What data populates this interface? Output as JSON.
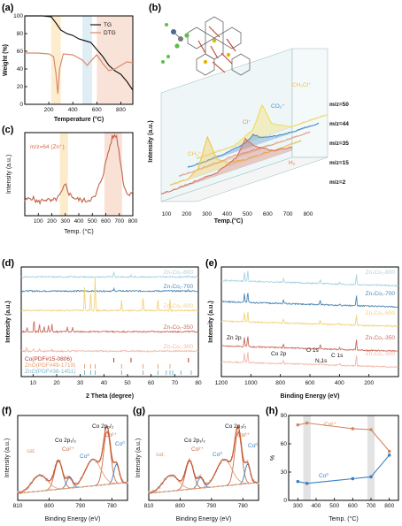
{
  "chart_data": [
    {
      "panel": "(a)",
      "type": "line",
      "xlabel": "Temperature (°C)",
      "ylabel": "Weight (%)",
      "xlim": [
        0,
        900
      ],
      "ylim": [
        0,
        100
      ],
      "xticks": [
        "200",
        "400",
        "600",
        "800"
      ],
      "yticks": [
        "0",
        "20",
        "40",
        "60",
        "80",
        "100"
      ],
      "legend": [
        "TG",
        "DTG"
      ],
      "legend_position": "top-right",
      "highlight_bands": [
        [
          220,
          300
        ],
        [
          480,
          560
        ],
        [
          600,
          900
        ]
      ],
      "series": [
        {
          "name": "TG",
          "color": "#1a1a1a",
          "x": [
            0,
            150,
            220,
            260,
            300,
            350,
            400,
            450,
            500,
            550,
            600,
            650,
            700,
            750,
            800,
            850,
            900
          ],
          "y": [
            100,
            100,
            99,
            92,
            84,
            80,
            78,
            74,
            72,
            70,
            62,
            54,
            44,
            38,
            34,
            26,
            16
          ]
        },
        {
          "name": "DTG",
          "color": "#d98a6a",
          "x": [
            0,
            100,
            200,
            240,
            260,
            275,
            290,
            320,
            400,
            480,
            520,
            550,
            600,
            650,
            700,
            750,
            800,
            850,
            900
          ],
          "y": [
            58,
            58,
            57,
            54,
            35,
            12,
            40,
            57,
            56,
            50,
            44,
            49,
            56,
            46,
            38,
            40,
            44,
            48,
            47
          ]
        }
      ]
    },
    {
      "panel": "(b)",
      "type": "line",
      "xlabel": "Temp.(°C)",
      "ylabel": "Intensity (a.u.)",
      "xticks": [
        "100",
        "200",
        "300",
        "400",
        "500",
        "600",
        "700",
        "800"
      ],
      "series_labels": [
        "m/z=50",
        "m/z=44",
        "m/z=35",
        "m/z=15",
        "m/z=2"
      ],
      "species_labels": [
        "CH₃Cl⁺",
        "CO₂⁺",
        "Cl⁺",
        "CH₃⁺",
        "H₂"
      ],
      "series": [
        {
          "name": "m/z=50",
          "color": "#f2dd5c",
          "x": [
            100,
            200,
            300,
            400,
            450,
            500,
            600,
            700,
            800
          ],
          "y": [
            0,
            0,
            0,
            0.3,
            1,
            0.3,
            0,
            0,
            0
          ]
        },
        {
          "name": "m/z=44",
          "color": "#4a8fc9",
          "x": [
            100,
            200,
            300,
            400,
            450,
            500,
            600,
            700,
            800
          ],
          "y": [
            0,
            0,
            0.1,
            0.4,
            1,
            0.4,
            0.1,
            0,
            0
          ]
        },
        {
          "name": "m/z=35",
          "color": "#e8a08a",
          "x": [
            100,
            200,
            300,
            400,
            500,
            600,
            700,
            800
          ],
          "y": [
            0,
            0,
            0.1,
            0.2,
            0.1,
            0.05,
            0,
            0
          ]
        },
        {
          "name": "m/z=15",
          "color": "#f0c64a",
          "x": [
            100,
            200,
            250,
            300,
            350,
            400,
            500,
            600,
            700,
            800
          ],
          "y": [
            0,
            0,
            0.2,
            1,
            0.3,
            0.1,
            0,
            0,
            0,
            0
          ]
        },
        {
          "name": "m/z=2",
          "color": "#d9735e",
          "x": [
            100,
            200,
            300,
            400,
            500,
            550,
            600,
            700,
            800
          ],
          "y": [
            0,
            0,
            0.05,
            0.1,
            0.4,
            1,
            0.6,
            0.2,
            0.1
          ]
        }
      ]
    },
    {
      "panel": "(c)",
      "type": "line",
      "annotation": "m/z=64 (Zn⁺)",
      "xlabel": "Temp. (°C)",
      "ylabel": "Intensity (a.u.)",
      "xlim": [
        0,
        800
      ],
      "xticks": [
        "100",
        "200",
        "300",
        "400",
        "500",
        "600",
        "700",
        "800"
      ],
      "highlight_bands": [
        [
          260,
          320
        ],
        [
          590,
          720
        ]
      ],
      "series": [
        {
          "name": "m/z=64",
          "color": "#c0634a",
          "x": [
            0,
            50,
            100,
            150,
            200,
            250,
            280,
            300,
            330,
            380,
            450,
            520,
            580,
            620,
            650,
            680,
            700,
            730,
            760,
            800
          ],
          "y": [
            0.18,
            0.22,
            0.16,
            0.2,
            0.17,
            0.22,
            0.3,
            0.38,
            0.26,
            0.2,
            0.18,
            0.22,
            0.5,
            0.78,
            0.95,
            0.96,
            0.75,
            0.4,
            0.25,
            0.3
          ]
        }
      ]
    },
    {
      "panel": "(d)",
      "type": "line",
      "xlabel": "2 Theta (degree)",
      "ylabel": "Intensity (a.u.)",
      "xlim": [
        5,
        80
      ],
      "xticks": [
        "10",
        "20",
        "30",
        "40",
        "50",
        "60",
        "70",
        "80"
      ],
      "references": [
        "Co(PDF#15-0806)",
        "ZnO(PDF#49-1719)",
        "ZnO(PDF#36-1451)"
      ],
      "series": [
        {
          "name": "Zn₇Co₁-800",
          "color": "#a9d3e2",
          "peaks": [
            [
              44.2,
              0.6
            ],
            [
              51.5,
              0.2
            ],
            [
              75.8,
              0.2
            ]
          ]
        },
        {
          "name": "Zn₇Co₁-700",
          "color": "#4a86b5",
          "peaks": [
            [
              44.2,
              0.3
            ],
            [
              75.8,
              0.15
            ]
          ]
        },
        {
          "name": "Zn₇Co₁-600",
          "color": "#f2d27a",
          "peaks": [
            [
              31.8,
              0.7
            ],
            [
              34.4,
              0.6
            ],
            [
              36.3,
              1.0
            ],
            [
              47.5,
              0.3
            ],
            [
              56.6,
              0.4
            ],
            [
              62.9,
              0.35
            ],
            [
              68.0,
              0.3
            ]
          ]
        },
        {
          "name": "Zn₇Co₁-350",
          "color": "#c96b5e",
          "peaks": [
            [
              7.5,
              0.3
            ],
            [
              10.4,
              0.8
            ],
            [
              12.7,
              0.5
            ],
            [
              14.7,
              0.3
            ],
            [
              16.5,
              0.4
            ],
            [
              18.0,
              0.5
            ],
            [
              24.5,
              0.3
            ],
            [
              26.7,
              0.3
            ]
          ]
        },
        {
          "name": "Zn₇Co₁-300",
          "color": "#f0b8a8",
          "peaks": [
            [
              7.3,
              0.4
            ],
            [
              10.3,
              0.3
            ],
            [
              12.7,
              0.25
            ],
            [
              18.0,
              0.2
            ]
          ]
        }
      ]
    },
    {
      "panel": "(e)",
      "type": "line",
      "xlabel": "Binding Energy (eV)",
      "ylabel": "Intensity (a.u.)",
      "xlim": [
        1200,
        0
      ],
      "xticks": [
        "1200",
        "1000",
        "800",
        "600",
        "400",
        "200"
      ],
      "peak_labels": [
        "Zn 2p",
        "Co 2p",
        "O 1s",
        "N 1s",
        "C 1s"
      ],
      "series": [
        {
          "name": "Zn₇Co₁-800",
          "color": "#a9d3e2"
        },
        {
          "name": "Zn₇Co₁-700",
          "color": "#4a86b5"
        },
        {
          "name": "Zn₇Co₁-600",
          "color": "#f2d27a"
        },
        {
          "name": "Zn₇Co₁-350",
          "color": "#c96b5e"
        },
        {
          "name": "Zn₇Co₁-300",
          "color": "#f0b8a8"
        }
      ]
    },
    {
      "panel": "(f)",
      "type": "line",
      "xlabel": "Binding Energy (eV)",
      "ylabel": "Intensity (a.u.)",
      "xlim": [
        810,
        775
      ],
      "xticks": [
        "810",
        "800",
        "790",
        "780"
      ],
      "peak_labels": [
        "Co 2p₃/₂",
        "Co 2p₁/₂",
        "Co²⁺",
        "Co⁰",
        "Co²⁺",
        "Co⁰",
        "sat."
      ],
      "series": [
        {
          "name": "Co²⁺",
          "color": "#c96b4a",
          "centers": [
            797,
            781.5
          ]
        },
        {
          "name": "Co⁰",
          "color": "#3a7fc2",
          "centers": [
            793.5,
            778.5
          ]
        },
        {
          "name": "sat.",
          "color": "#e8a070",
          "centers": [
            803,
            786
          ]
        }
      ]
    },
    {
      "panel": "(g)",
      "type": "line",
      "xlabel": "Binding Energy (eV)",
      "ylabel": "Intensity (a.u.)",
      "xlim": [
        810,
        775
      ],
      "xticks": [
        "810",
        "800",
        "790",
        "780"
      ],
      "peak_labels": [
        "Co 2p₃/₂",
        "Co 2p₁/₂",
        "Co²⁺",
        "Co⁰",
        "Co²⁺",
        "Co⁰",
        "sat."
      ],
      "series": [
        {
          "name": "Co²⁺",
          "color": "#c96b4a",
          "centers": [
            797,
            781.5
          ]
        },
        {
          "name": "Co⁰",
          "color": "#3a7fc2",
          "centers": [
            793.5,
            778.5
          ]
        },
        {
          "name": "sat.",
          "color": "#e8a070",
          "centers": [
            803,
            786
          ]
        }
      ]
    },
    {
      "panel": "(h)",
      "type": "line",
      "xlabel": "Temp. (°C)",
      "ylabel": "%",
      "xlim": [
        250,
        850
      ],
      "ylim": [
        0,
        90
      ],
      "xticks": [
        "300",
        "400",
        "500",
        "600",
        "700",
        "800"
      ],
      "yticks": [
        "0",
        "30",
        "60",
        "90"
      ],
      "highlight_bands": [
        [
          330,
          370
        ],
        [
          680,
          720
        ]
      ],
      "series": [
        {
          "name": "Co²⁺",
          "color": "#d4845e",
          "x": [
            300,
            350,
            600,
            700,
            800
          ],
          "y": [
            80,
            82,
            76,
            75,
            52
          ]
        },
        {
          "name": "Co⁰",
          "color": "#3a7fc2",
          "x": [
            300,
            350,
            600,
            700,
            800
          ],
          "y": [
            20,
            18,
            23,
            25,
            48
          ]
        }
      ]
    }
  ]
}
